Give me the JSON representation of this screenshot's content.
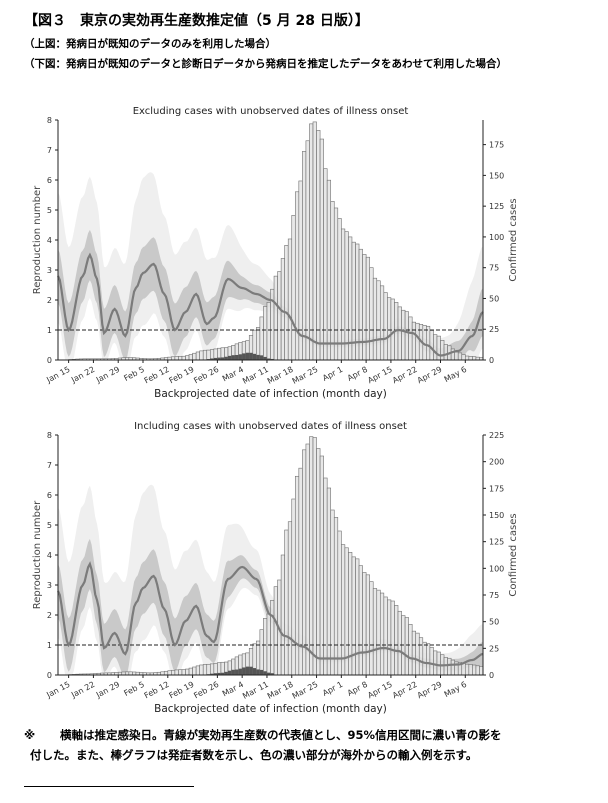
{
  "header": {
    "title": "【図３　東京の実効再生産数推定値（5 月 28 日版）】",
    "subtitle_top": "（上図：発病日が既知のデータのみを利用した場合）",
    "subtitle_bottom": "（下図：発病日が既知のデータと診断日データから発病日を推定したデータをあわせて利用した場合）"
  },
  "footnote": {
    "mark": "※",
    "line1": "横軸は推定感染日。青線が実効再生産数の代表値とし、95%信用区間に濃い青の影を",
    "line2": "付した。また、棒グラフは発症者数を示し、色の濃い部分が海外からの輸入例を示す。"
  },
  "colors": {
    "bar_fill": "#e4e4e4",
    "bar_stroke": "#6f6f6f",
    "imported_fill": "#555555",
    "band_light": "#efefef",
    "band_dark": "#c9c9c9",
    "rt_line": "#7b7b7b",
    "reference_line": "#222222"
  },
  "chart_data": [
    {
      "type": "bar+line",
      "title": "Excluding cases with unobserved dates of illness onset",
      "xlabel": "Backprojected date of infection (month day)",
      "ylabel": "Reproduction number",
      "y2label": "Confirmed cases",
      "ylim": [
        0,
        8
      ],
      "y2lim": [
        0,
        195
      ],
      "yticks": [
        0,
        1,
        2,
        3,
        4,
        5,
        6,
        7,
        8
      ],
      "y2ticks": [
        0,
        25,
        50,
        75,
        100,
        125,
        150,
        175
      ],
      "xticks": [
        "Jan 15",
        "Jan 22",
        "Jan 29",
        "Feb 5",
        "Feb 12",
        "Feb 19",
        "Feb 26",
        "Mar 4",
        "Mar 11",
        "Mar 18",
        "Mar 25",
        "Apr 1",
        "Apr 8",
        "Apr 15",
        "Apr 22",
        "Apr 29",
        "May 6"
      ],
      "reference_line": 1,
      "legend": "none",
      "case_knots": [
        [
          0,
          0
        ],
        [
          8,
          1
        ],
        [
          14,
          1
        ],
        [
          20,
          2
        ],
        [
          26,
          1
        ],
        [
          35,
          3
        ],
        [
          42,
          8
        ],
        [
          47,
          10
        ],
        [
          53,
          15
        ],
        [
          56,
          25
        ],
        [
          59,
          45
        ],
        [
          62,
          70
        ],
        [
          65,
          95
        ],
        [
          68,
          140
        ],
        [
          70,
          175
        ],
        [
          72,
          195
        ],
        [
          74,
          185
        ],
        [
          76,
          150
        ],
        [
          78,
          125
        ],
        [
          81,
          105
        ],
        [
          84,
          95
        ],
        [
          87,
          85
        ],
        [
          90,
          65
        ],
        [
          94,
          50
        ],
        [
          98,
          40
        ],
        [
          101,
          30
        ],
        [
          104,
          28
        ],
        [
          107,
          20
        ],
        [
          110,
          12
        ],
        [
          113,
          6
        ],
        [
          116,
          3
        ],
        [
          120,
          2
        ]
      ],
      "imported_knots": [
        [
          0,
          0
        ],
        [
          40,
          0
        ],
        [
          46,
          2
        ],
        [
          50,
          4
        ],
        [
          54,
          6
        ],
        [
          57,
          4
        ],
        [
          60,
          1
        ],
        [
          62,
          0
        ],
        [
          120,
          0
        ]
      ],
      "rt_knots": [
        [
          0,
          2.8
        ],
        [
          3,
          1.0
        ],
        [
          7,
          2.8
        ],
        [
          9,
          3.5
        ],
        [
          11,
          2.7
        ],
        [
          13,
          0.9
        ],
        [
          16,
          1.7
        ],
        [
          19,
          0.8
        ],
        [
          22,
          2.4
        ],
        [
          24,
          2.9
        ],
        [
          27,
          3.2
        ],
        [
          30,
          2.2
        ],
        [
          33,
          1.0
        ],
        [
          36,
          1.6
        ],
        [
          39,
          2.2
        ],
        [
          42,
          1.2
        ],
        [
          44,
          1.4
        ],
        [
          48,
          2.7
        ],
        [
          52,
          2.4
        ],
        [
          56,
          2.2
        ],
        [
          60,
          2.0
        ],
        [
          64,
          1.6
        ],
        [
          69,
          0.8
        ],
        [
          74,
          0.55
        ],
        [
          80,
          0.55
        ],
        [
          86,
          0.6
        ],
        [
          92,
          0.7
        ],
        [
          96,
          1.0
        ],
        [
          100,
          0.9
        ],
        [
          104,
          0.5
        ],
        [
          108,
          0.15
        ],
        [
          113,
          0.3
        ],
        [
          117,
          0.8
        ],
        [
          120,
          1.6
        ]
      ],
      "ci_dark_width": [
        [
          0,
          0.9
        ],
        [
          15,
          0.8
        ],
        [
          30,
          0.9
        ],
        [
          45,
          0.7
        ],
        [
          55,
          0.3
        ],
        [
          70,
          0.1
        ],
        [
          95,
          0.12
        ],
        [
          105,
          0.2
        ],
        [
          115,
          0.35
        ],
        [
          120,
          0.8
        ]
      ],
      "ci_light_width": [
        [
          0,
          2.8
        ],
        [
          10,
          2.6
        ],
        [
          15,
          2.0
        ],
        [
          25,
          3.2
        ],
        [
          30,
          2.6
        ],
        [
          40,
          2.2
        ],
        [
          48,
          1.8
        ],
        [
          55,
          1.0
        ],
        [
          65,
          0.4
        ],
        [
          80,
          0.3
        ],
        [
          100,
          0.4
        ],
        [
          110,
          0.6
        ],
        [
          120,
          2.2
        ]
      ]
    },
    {
      "type": "bar+line",
      "title": "Including cases with unobserved dates of illness onset",
      "xlabel": "Backprojected date of infection (month day)",
      "ylabel": "Reproduction number",
      "y2label": "Confirmed cases",
      "ylim": [
        0,
        8
      ],
      "y2lim": [
        0,
        225
      ],
      "yticks": [
        0,
        1,
        2,
        3,
        4,
        5,
        6,
        7,
        8
      ],
      "y2ticks": [
        0,
        25,
        50,
        75,
        100,
        125,
        150,
        175,
        200,
        225
      ],
      "xticks": [
        "Jan 15",
        "Jan 22",
        "Jan 29",
        "Feb 5",
        "Feb 12",
        "Feb 19",
        "Feb 26",
        "Mar 4",
        "Mar 11",
        "Mar 18",
        "Mar 25",
        "Apr 1",
        "Apr 8",
        "Apr 15",
        "Apr 22",
        "Apr 29",
        "May 6"
      ],
      "reference_line": 1,
      "legend": "none",
      "case_knots": [
        [
          0,
          0
        ],
        [
          8,
          1
        ],
        [
          14,
          2
        ],
        [
          20,
          3
        ],
        [
          26,
          2
        ],
        [
          35,
          5
        ],
        [
          42,
          10
        ],
        [
          47,
          12
        ],
        [
          53,
          20
        ],
        [
          56,
          30
        ],
        [
          59,
          55
        ],
        [
          62,
          85
        ],
        [
          65,
          140
        ],
        [
          68,
          190
        ],
        [
          70,
          215
        ],
        [
          72,
          225
        ],
        [
          74,
          210
        ],
        [
          76,
          180
        ],
        [
          78,
          150
        ],
        [
          81,
          120
        ],
        [
          84,
          110
        ],
        [
          87,
          95
        ],
        [
          90,
          80
        ],
        [
          94,
          70
        ],
        [
          98,
          55
        ],
        [
          101,
          40
        ],
        [
          104,
          30
        ],
        [
          107,
          22
        ],
        [
          110,
          16
        ],
        [
          113,
          12
        ],
        [
          116,
          10
        ],
        [
          120,
          8
        ]
      ],
      "imported_knots": [
        [
          0,
          0
        ],
        [
          40,
          0
        ],
        [
          46,
          2
        ],
        [
          50,
          5
        ],
        [
          54,
          8
        ],
        [
          57,
          5
        ],
        [
          60,
          2
        ],
        [
          62,
          0
        ],
        [
          120,
          0
        ]
      ],
      "rt_knots": [
        [
          0,
          2.8
        ],
        [
          3,
          1.0
        ],
        [
          7,
          3.0
        ],
        [
          9,
          3.7
        ],
        [
          11,
          2.5
        ],
        [
          13,
          0.9
        ],
        [
          16,
          1.4
        ],
        [
          19,
          0.7
        ],
        [
          22,
          2.4
        ],
        [
          24,
          2.9
        ],
        [
          27,
          3.3
        ],
        [
          30,
          2.2
        ],
        [
          33,
          1.0
        ],
        [
          36,
          1.8
        ],
        [
          39,
          2.3
        ],
        [
          42,
          1.3
        ],
        [
          44,
          1.1
        ],
        [
          48,
          3.2
        ],
        [
          52,
          3.6
        ],
        [
          56,
          3.2
        ],
        [
          60,
          2.0
        ],
        [
          64,
          1.3
        ],
        [
          69,
          0.95
        ],
        [
          74,
          0.55
        ],
        [
          80,
          0.55
        ],
        [
          86,
          0.75
        ],
        [
          92,
          0.9
        ],
        [
          96,
          0.8
        ],
        [
          100,
          0.55
        ],
        [
          104,
          0.4
        ],
        [
          108,
          0.32
        ],
        [
          113,
          0.35
        ],
        [
          117,
          0.5
        ],
        [
          120,
          0.7
        ]
      ],
      "ci_dark_width": [
        [
          0,
          0.9
        ],
        [
          15,
          0.8
        ],
        [
          30,
          0.9
        ],
        [
          45,
          0.7
        ],
        [
          55,
          0.3
        ],
        [
          70,
          0.1
        ],
        [
          95,
          0.1
        ],
        [
          105,
          0.15
        ],
        [
          115,
          0.2
        ],
        [
          120,
          0.4
        ]
      ],
      "ci_light_width": [
        [
          0,
          2.8
        ],
        [
          10,
          2.6
        ],
        [
          15,
          2.0
        ],
        [
          25,
          3.2
        ],
        [
          30,
          2.6
        ],
        [
          40,
          2.2
        ],
        [
          48,
          1.8
        ],
        [
          55,
          1.0
        ],
        [
          65,
          0.4
        ],
        [
          80,
          0.3
        ],
        [
          100,
          0.3
        ],
        [
          110,
          0.4
        ],
        [
          120,
          1.0
        ]
      ]
    }
  ]
}
